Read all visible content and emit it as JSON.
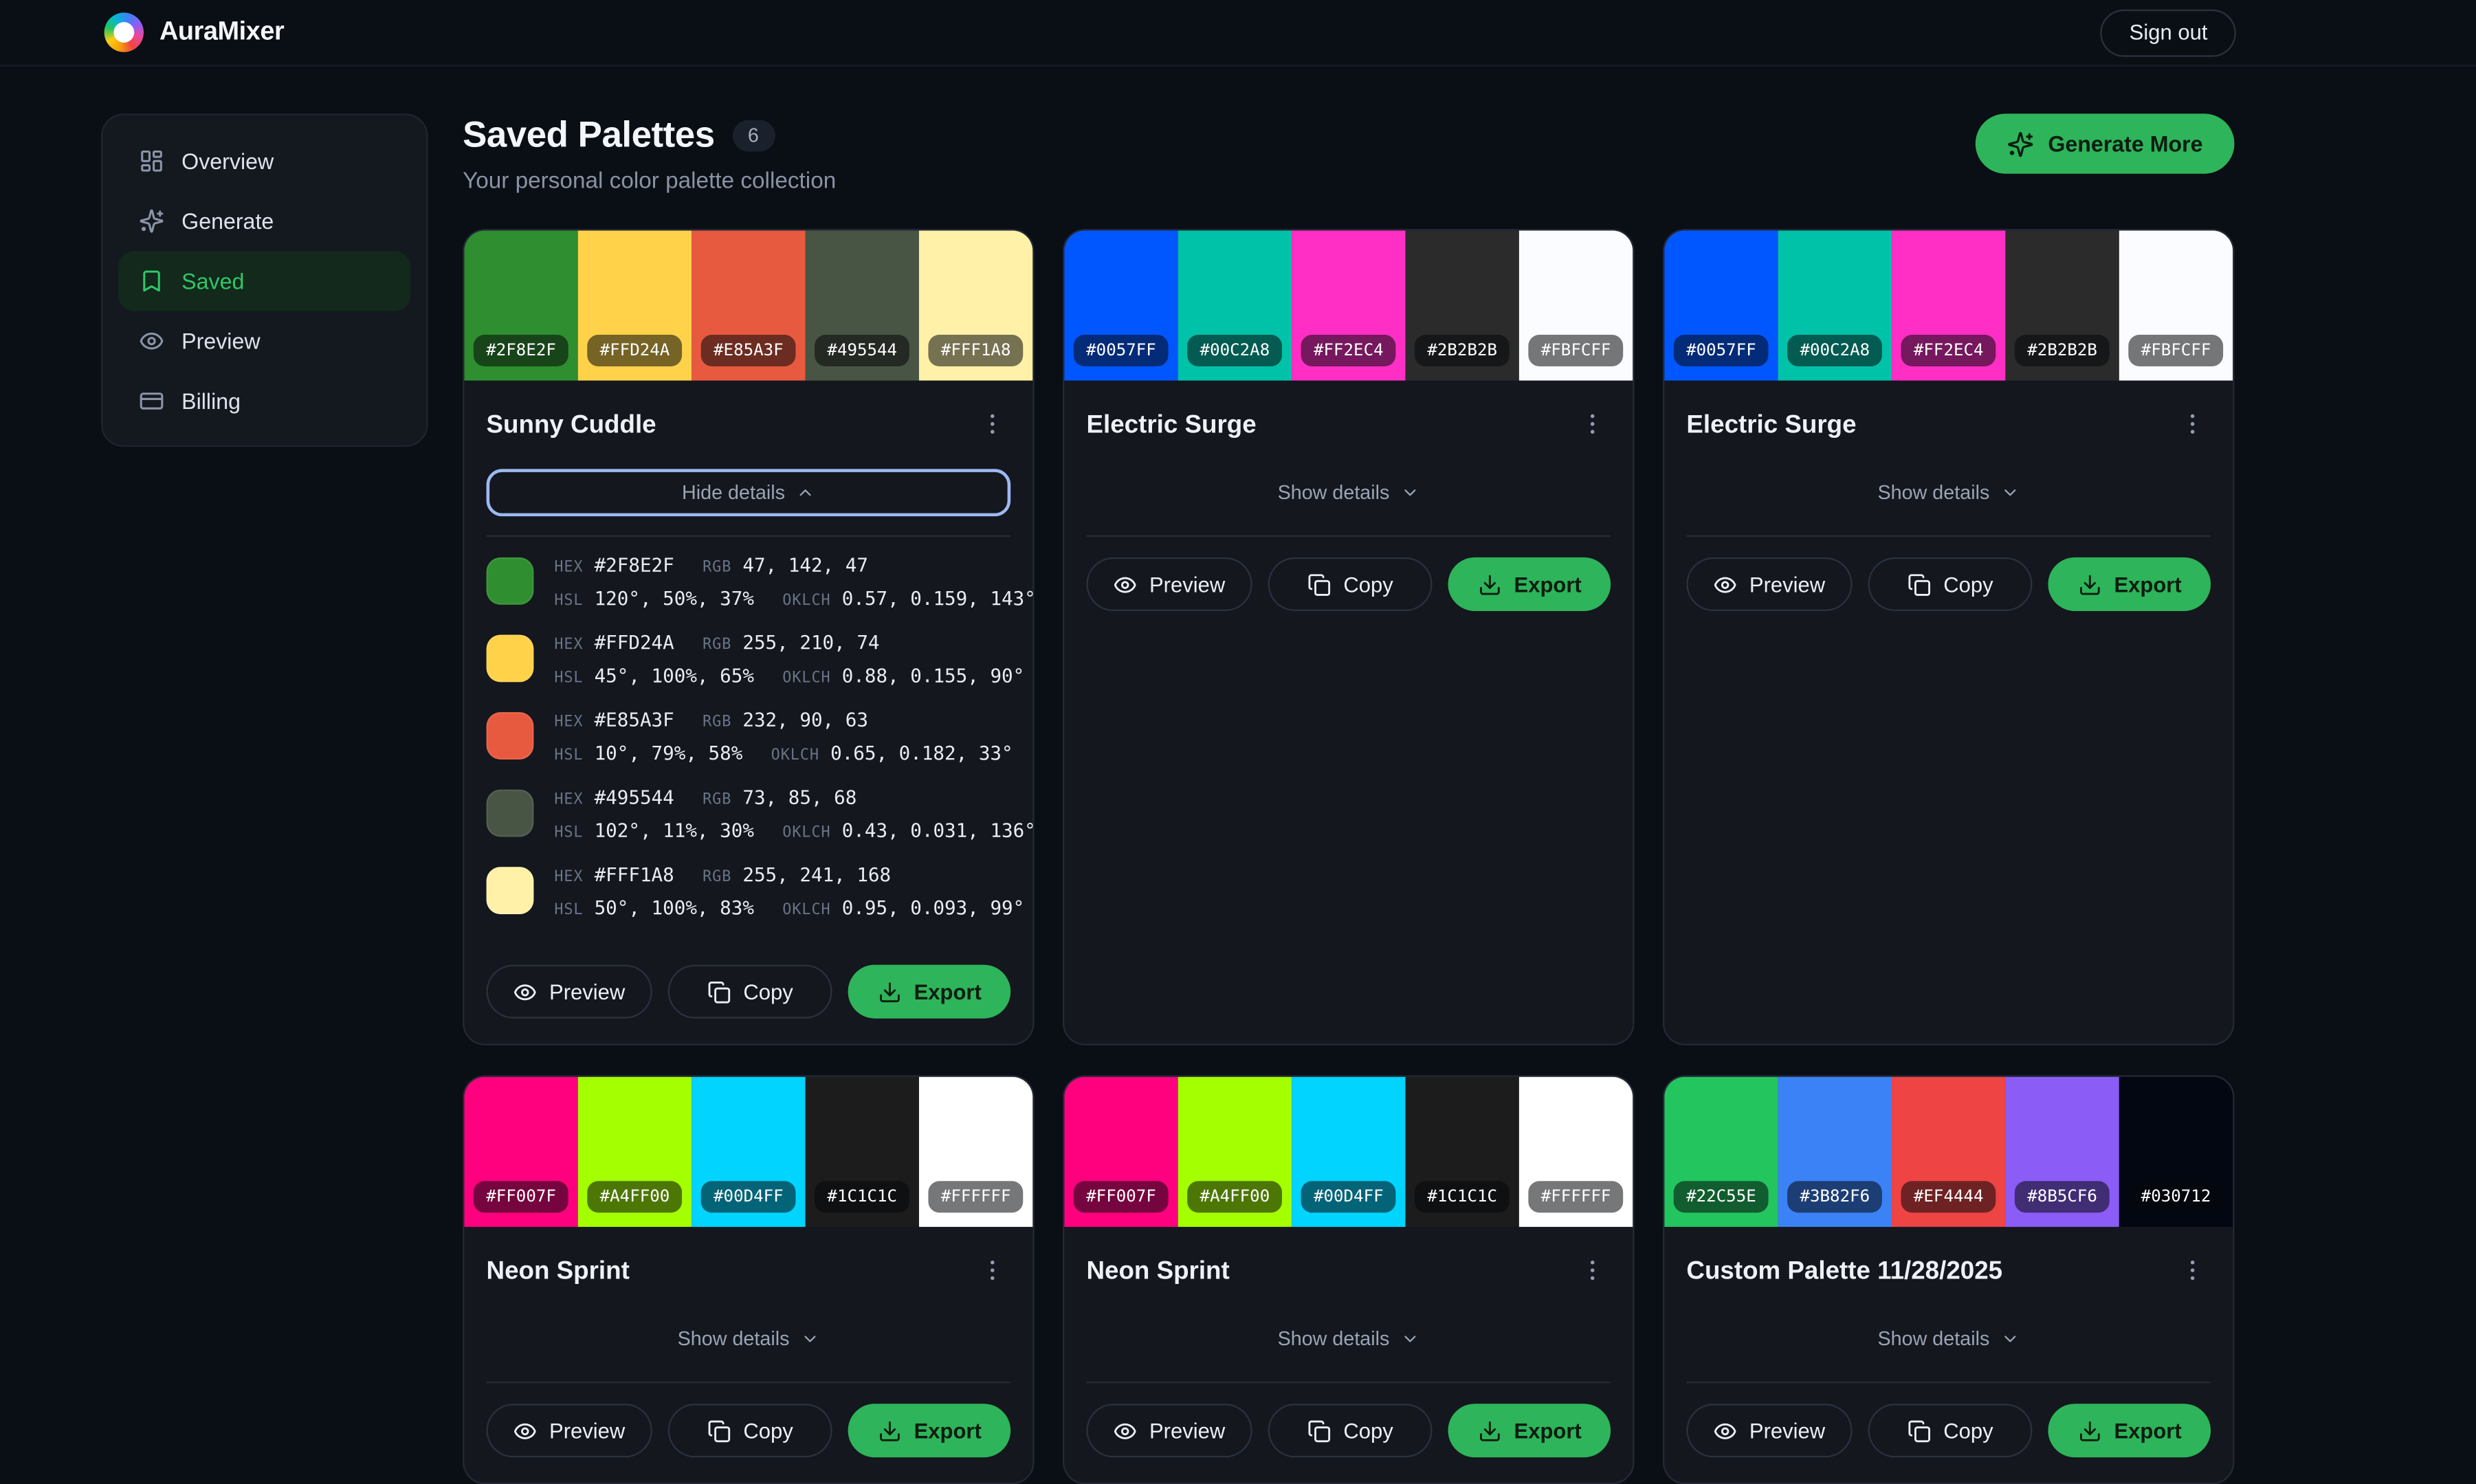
{
  "brand": {
    "name": "AuraMixer"
  },
  "topbar": {
    "sign_out": "Sign out"
  },
  "sidebar": {
    "items": [
      {
        "label": "Overview",
        "icon": "overview-grid-icon",
        "active": false
      },
      {
        "label": "Generate",
        "icon": "sparkles-icon",
        "active": false
      },
      {
        "label": "Saved",
        "icon": "bookmark-icon",
        "active": true
      },
      {
        "label": "Preview",
        "icon": "eye-icon",
        "active": false
      },
      {
        "label": "Billing",
        "icon": "credit-card-icon",
        "active": false
      }
    ]
  },
  "header": {
    "title": "Saved Palettes",
    "count_badge": "6",
    "subtitle": "Your personal color palette collection",
    "generate_more": "Generate More"
  },
  "labels": {
    "show_details": "Show details",
    "hide_details": "Hide details",
    "preview": "Preview",
    "copy": "Copy",
    "export": "Export",
    "hex": "HEX",
    "rgb": "RGB",
    "hsl": "HSL",
    "oklch": "OKLCH"
  },
  "colors": {
    "accent_green": "#2EB45A",
    "active_nav_green": "#2FC765",
    "focus_ring_blue": "#9DB9F1",
    "page_bg": "#0A0E15",
    "card_bg": "#14171E"
  },
  "palettes": [
    {
      "name": "Sunny Cuddle",
      "expanded": true,
      "swatches": [
        "#2F8E2F",
        "#FFD24A",
        "#E85A3F",
        "#495544",
        "#FFF1A8"
      ],
      "details": [
        {
          "hex": "#2F8E2F",
          "rgb": "47, 142, 47",
          "hsl": "120°, 50%, 37%",
          "oklch": "0.57, 0.159, 143°"
        },
        {
          "hex": "#FFD24A",
          "rgb": "255, 210, 74",
          "hsl": "45°, 100%, 65%",
          "oklch": "0.88, 0.155, 90°"
        },
        {
          "hex": "#E85A3F",
          "rgb": "232, 90, 63",
          "hsl": "10°, 79%, 58%",
          "oklch": "0.65, 0.182, 33°"
        },
        {
          "hex": "#495544",
          "rgb": "73, 85, 68",
          "hsl": "102°, 11%, 30%",
          "oklch": "0.43, 0.031, 136°"
        },
        {
          "hex": "#FFF1A8",
          "rgb": "255, 241, 168",
          "hsl": "50°, 100%, 83%",
          "oklch": "0.95, 0.093, 99°"
        }
      ]
    },
    {
      "name": "Electric Surge",
      "expanded": false,
      "swatches": [
        "#0057FF",
        "#00C2A8",
        "#FF2EC4",
        "#2B2B2B",
        "#FBFCFF"
      ]
    },
    {
      "name": "Electric Surge",
      "expanded": false,
      "swatches": [
        "#0057FF",
        "#00C2A8",
        "#FF2EC4",
        "#2B2B2B",
        "#FBFCFF"
      ]
    },
    {
      "name": "Neon Sprint",
      "expanded": false,
      "swatches": [
        "#FF007F",
        "#A4FF00",
        "#00D4FF",
        "#1C1C1C",
        "#FFFFFF"
      ]
    },
    {
      "name": "Neon Sprint",
      "expanded": false,
      "swatches": [
        "#FF007F",
        "#A4FF00",
        "#00D4FF",
        "#1C1C1C",
        "#FFFFFF"
      ]
    },
    {
      "name": "Custom Palette 11/28/2025",
      "expanded": false,
      "swatches": [
        "#22C55E",
        "#3B82F6",
        "#EF4444",
        "#8B5CF6",
        "#030712"
      ]
    }
  ]
}
